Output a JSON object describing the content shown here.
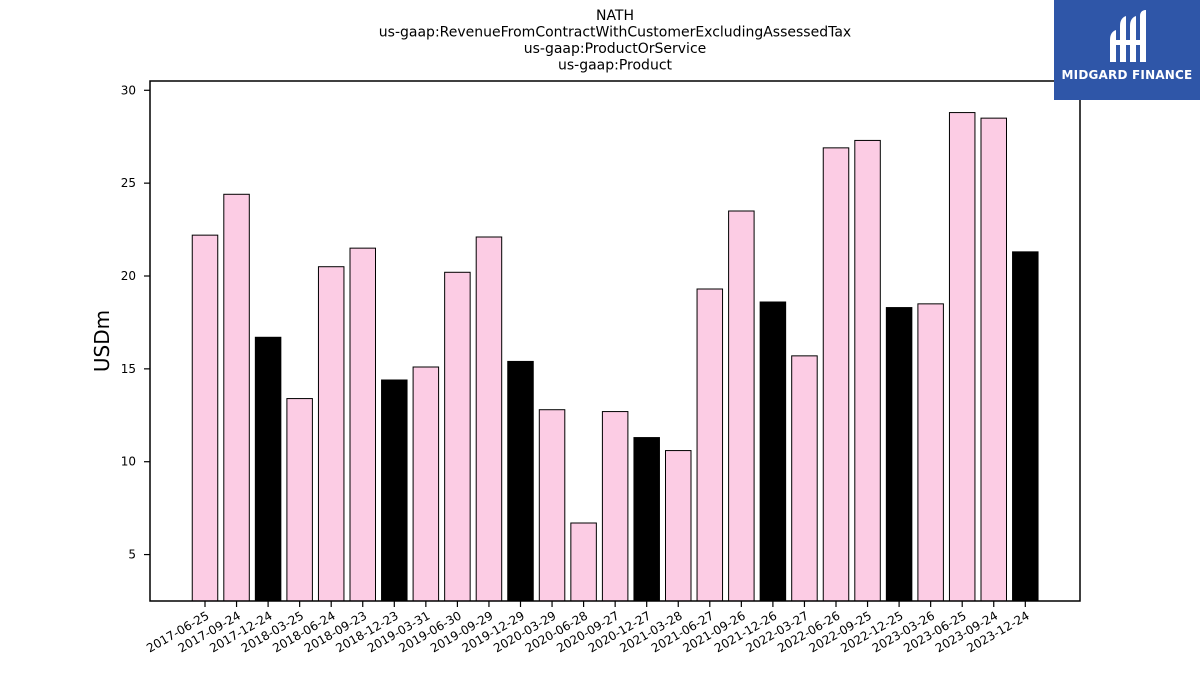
{
  "chart_data": {
    "type": "bar",
    "title_lines": [
      "NATH",
      "us-gaap:RevenueFromContractWithCustomerExcludingAssessedTax",
      "us-gaap:ProductOrService",
      "us-gaap:Product"
    ],
    "ylabel": "USDm",
    "xlabel": "",
    "ylim": [
      2.5,
      30.5
    ],
    "yticks": [
      5,
      10,
      15,
      20,
      25,
      30
    ],
    "categories": [
      "2017-06-25",
      "2017-09-24",
      "2017-12-24",
      "2018-03-25",
      "2018-06-24",
      "2018-09-23",
      "2018-12-23",
      "2019-03-31",
      "2019-06-30",
      "2019-09-29",
      "2019-12-29",
      "2020-03-29",
      "2020-06-28",
      "2020-09-27",
      "2020-12-27",
      "2021-03-28",
      "2021-06-27",
      "2021-09-26",
      "2021-12-26",
      "2022-03-27",
      "2022-06-26",
      "2022-09-25",
      "2022-12-25",
      "2023-03-26",
      "2023-06-25",
      "2023-09-24",
      "2023-12-24"
    ],
    "values": [
      22.2,
      24.4,
      16.7,
      13.4,
      20.5,
      21.5,
      14.4,
      15.1,
      20.2,
      22.1,
      15.4,
      12.8,
      6.7,
      12.7,
      11.3,
      10.6,
      19.3,
      23.5,
      18.6,
      15.7,
      26.9,
      27.3,
      18.3,
      18.5,
      28.8,
      28.5,
      21.3
    ],
    "highlight": [
      false,
      false,
      true,
      false,
      false,
      false,
      true,
      false,
      false,
      false,
      true,
      false,
      false,
      false,
      true,
      false,
      false,
      false,
      true,
      false,
      false,
      false,
      true,
      false,
      false,
      false,
      true
    ],
    "colors": {
      "normal": "#fccce4",
      "highlight": "#000000",
      "edge": "#000000"
    },
    "grid": false,
    "legend": "none"
  },
  "logo": {
    "text": "MIDGARD FINANCE",
    "color": "#2f56a8"
  }
}
